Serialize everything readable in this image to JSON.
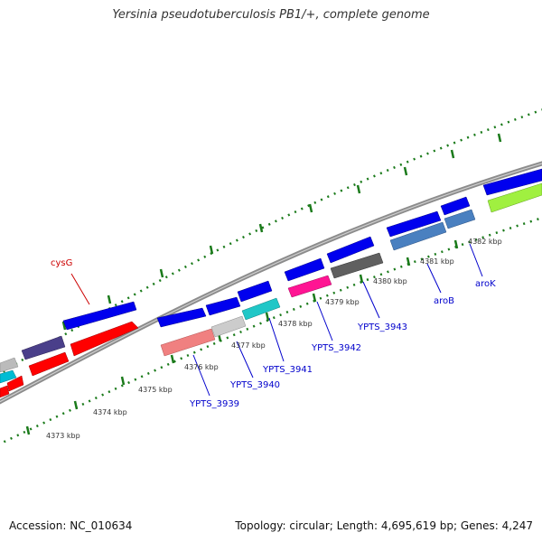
{
  "title": "Yersinia pseudotuberculosis PB1/+, complete genome",
  "accession": "Accession: NC_010634",
  "summary": "Topology: circular; Length: 4,695,619 bp; Genes: 4,247",
  "colors": {
    "backbone": "#8c8c8c",
    "tick": "#1a7a1a",
    "label_blue": "#0000cc",
    "label_red": "#cc0000",
    "kbp_text": "#333333"
  },
  "ruler": [
    {
      "label": "4373 kbp",
      "value": 4373
    },
    {
      "label": "4374 kbp",
      "value": 4374
    },
    {
      "label": "4375 kbp",
      "value": 4375
    },
    {
      "label": "4376 kbp",
      "value": 4376
    },
    {
      "label": "4377 kbp",
      "value": 4377
    },
    {
      "label": "4378 kbp",
      "value": 4378
    },
    {
      "label": "4379 kbp",
      "value": 4379
    },
    {
      "label": "4380 kbp",
      "value": 4380
    },
    {
      "label": "4381 kbp",
      "value": 4381
    },
    {
      "label": "4382 kbp",
      "value": 4382
    }
  ],
  "genes": [
    {
      "label": "cysG",
      "color": "red"
    },
    {
      "label": "YPTS_3939",
      "color": "blue"
    },
    {
      "label": "YPTS_3940",
      "color": "blue"
    },
    {
      "label": "YPTS_3941",
      "color": "blue"
    },
    {
      "label": "YPTS_3942",
      "color": "blue"
    },
    {
      "label": "YPTS_3943",
      "color": "blue"
    },
    {
      "label": "aroB",
      "color": "blue"
    },
    {
      "label": "aroK",
      "color": "blue"
    }
  ]
}
